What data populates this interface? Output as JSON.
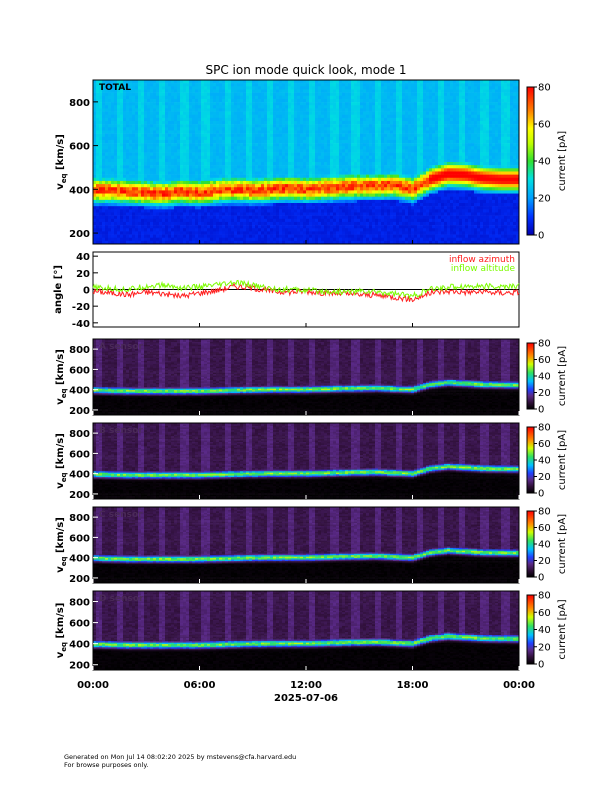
{
  "title": "SPC ion mode quick look, mode 1",
  "date_label": "2025-07-06",
  "x_ticks": [
    "00:00",
    "06:00",
    "12:00",
    "18:00",
    "00:00"
  ],
  "footer": {
    "line1": "Generated on Mon Jul 14 08:02:20 2025 by mstevens@cfa.harvard.edu",
    "line2": "For browse purposes only."
  },
  "colorbar": {
    "label": "current [pA]",
    "main_ticks": [
      "0",
      "20",
      "40",
      "60",
      "80"
    ],
    "sensor_ticks": [
      "0",
      "20",
      "40",
      "60",
      "80"
    ]
  },
  "panels": {
    "total": {
      "label": "TOTAL",
      "ylabel": "v",
      "ylabel_sub": "eq",
      "ylabel_unit": " [km/s]",
      "yticks": [
        "200",
        "400",
        "600",
        "800"
      ]
    },
    "angle": {
      "ylabel": "angle [°]",
      "yticks": [
        "-40",
        "-20",
        "0",
        "20",
        "40"
      ],
      "legend": [
        {
          "name": "inflow azimuth",
          "color": "#ff2020"
        },
        {
          "name": "inflow altitude",
          "color": "#7cfc00"
        }
      ]
    },
    "a": {
      "label": "A sensor",
      "ylabel": "v",
      "ylabel_sub": "eq",
      "ylabel_unit": " [km/s]",
      "yticks": [
        "200",
        "400",
        "600",
        "800"
      ]
    },
    "b": {
      "label": "B sensor",
      "ylabel": "v",
      "ylabel_sub": "eq",
      "ylabel_unit": " [km/s]",
      "yticks": [
        "200",
        "400",
        "600",
        "800"
      ]
    },
    "c": {
      "label": "C sensor",
      "ylabel": "v",
      "ylabel_sub": "eq",
      "ylabel_unit": " [km/s]",
      "yticks": [
        "200",
        "400",
        "600",
        "800"
      ]
    },
    "d": {
      "label": "D sensor",
      "ylabel": "v",
      "ylabel_sub": "eq",
      "ylabel_unit": " [km/s]",
      "yticks": [
        "200",
        "400",
        "600",
        "800"
      ]
    }
  },
  "chart_data": [
    {
      "type": "heatmap",
      "title": "SPC ion mode quick look, mode 1",
      "panel": "TOTAL",
      "xlabel": "2025-07-06",
      "ylabel": "v_eq [km/s]",
      "xlim_hours": [
        0,
        24
      ],
      "ylim": [
        150,
        900
      ],
      "colorbar": {
        "label": "current [pA]",
        "range": [
          0,
          80
        ]
      },
      "peak_velocity_kms": {
        "hours": [
          0,
          1,
          2,
          3,
          4,
          5,
          6,
          7,
          8,
          9,
          10,
          11,
          12,
          13,
          14,
          15,
          16,
          17,
          18,
          19,
          20,
          21,
          22,
          23,
          24
        ],
        "values": [
          395,
          395,
          390,
          385,
          380,
          390,
          385,
          395,
          400,
          395,
          400,
          405,
          400,
          405,
          410,
          415,
          415,
          420,
          400,
          445,
          470,
          465,
          450,
          445,
          445
        ]
      },
      "colorscale": "rainbow",
      "grid": false
    },
    {
      "type": "line",
      "panel": "angle",
      "xlim_hours": [
        0,
        24
      ],
      "ylim": [
        -45,
        45
      ],
      "ylabel": "angle [°]",
      "series": [
        {
          "name": "inflow azimuth",
          "color": "#ff2020",
          "x": [
            0,
            1,
            2,
            3,
            4,
            5,
            6,
            7,
            8,
            9,
            10,
            11,
            12,
            13,
            14,
            15,
            16,
            17,
            18,
            19,
            20,
            21,
            22,
            23,
            24
          ],
          "y": [
            -2,
            -4,
            -6,
            -3,
            -5,
            -8,
            -4,
            -1,
            4,
            2,
            -2,
            -3,
            -2,
            -4,
            -5,
            -6,
            -7,
            -9,
            -12,
            -4,
            -2,
            -3,
            -3,
            -4,
            -3
          ]
        },
        {
          "name": "inflow altitude",
          "color": "#7cfc00",
          "x": [
            0,
            1,
            2,
            3,
            4,
            5,
            6,
            7,
            8,
            9,
            10,
            11,
            12,
            13,
            14,
            15,
            16,
            17,
            18,
            19,
            20,
            21,
            22,
            23,
            24
          ],
          "y": [
            2,
            1,
            0,
            4,
            5,
            2,
            3,
            5,
            8,
            5,
            1,
            0,
            -1,
            -2,
            -3,
            -2,
            -3,
            -5,
            -8,
            0,
            3,
            4,
            4,
            3,
            4
          ]
        }
      ],
      "reference_line": 0
    },
    {
      "type": "heatmap",
      "panel": "A sensor",
      "ylabel": "v_eq [km/s]",
      "ylim": [
        150,
        900
      ],
      "colorbar": {
        "label": "current [pA]",
        "range": [
          0,
          80
        ]
      },
      "peak_velocity_kms": {
        "hours": [
          0,
          2,
          4,
          6,
          8,
          10,
          12,
          14,
          16,
          18,
          19,
          20,
          22,
          24
        ],
        "values": [
          395,
          385,
          385,
          385,
          395,
          400,
          400,
          410,
          415,
          400,
          450,
          470,
          450,
          445
        ]
      }
    },
    {
      "type": "heatmap",
      "panel": "B sensor",
      "ylabel": "v_eq [km/s]",
      "ylim": [
        150,
        900
      ],
      "colorbar": {
        "label": "current [pA]",
        "range": [
          0,
          80
        ]
      },
      "peak_velocity_kms": {
        "hours": [
          0,
          2,
          4,
          6,
          8,
          10,
          12,
          14,
          16,
          18,
          19,
          20,
          22,
          24
        ],
        "values": [
          395,
          385,
          385,
          385,
          395,
          400,
          400,
          410,
          415,
          400,
          450,
          470,
          450,
          445
        ]
      }
    },
    {
      "type": "heatmap",
      "panel": "C sensor",
      "ylabel": "v_eq [km/s]",
      "ylim": [
        150,
        900
      ],
      "colorbar": {
        "label": "current [pA]",
        "range": [
          0,
          80
        ]
      },
      "peak_velocity_kms": {
        "hours": [
          0,
          2,
          4,
          6,
          8,
          10,
          12,
          14,
          16,
          18,
          19,
          20,
          22,
          24
        ],
        "values": [
          395,
          385,
          385,
          385,
          395,
          400,
          400,
          410,
          415,
          400,
          450,
          470,
          450,
          445
        ]
      }
    },
    {
      "type": "heatmap",
      "panel": "D sensor",
      "ylabel": "v_eq [km/s]",
      "ylim": [
        150,
        900
      ],
      "colorbar": {
        "label": "current [pA]",
        "range": [
          0,
          80
        ]
      },
      "peak_velocity_kms": {
        "hours": [
          0,
          2,
          4,
          6,
          8,
          10,
          12,
          14,
          16,
          18,
          19,
          20,
          22,
          24
        ],
        "values": [
          395,
          385,
          385,
          385,
          395,
          400,
          400,
          410,
          415,
          400,
          450,
          470,
          450,
          445
        ]
      }
    }
  ]
}
